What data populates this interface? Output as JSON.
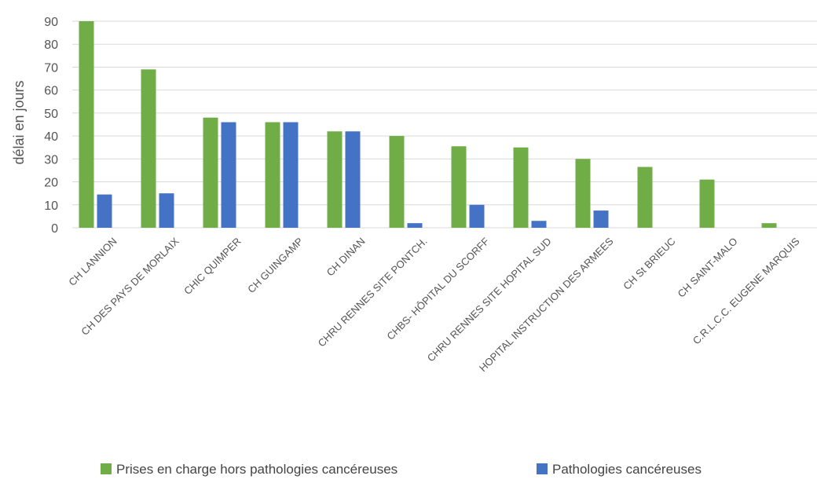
{
  "chart_data": {
    "type": "bar",
    "title": "",
    "xlabel": "",
    "ylabel": "délai en jours",
    "ylim": [
      0,
      90
    ],
    "yticks": [
      0,
      10,
      20,
      30,
      40,
      50,
      60,
      70,
      80,
      90
    ],
    "grid": true,
    "legend_position": "bottom",
    "categories": [
      "CH LANNION",
      "CH DES PAYS DE MORLAIX",
      "CHIC QUIMPER",
      "CH GUINGAMP",
      "CH DINAN",
      "CHRU RENNES SITE PONTCH.",
      "CHBS- HÔPITAL DU SCORFF",
      "CHRU RENNES SITE HOPITAL SUD",
      "HOPITAL INSTRUCTION DES ARMEES",
      "CH St BRIEUC",
      "CH SAINT-MALO",
      "C.R.L.C.C. EUGENE MARQUIS"
    ],
    "series": [
      {
        "name": "Prises en charge hors pathologies cancéreuses",
        "color": "#70ad47",
        "values": [
          90,
          69,
          48,
          46,
          42,
          40,
          35.5,
          35,
          30,
          26.5,
          21,
          2
        ]
      },
      {
        "name": "Pathologies cancéreuses",
        "color": "#4472c4",
        "values": [
          14.5,
          15,
          46,
          46,
          42,
          2,
          10,
          3,
          7.5,
          null,
          null,
          null
        ]
      }
    ]
  }
}
